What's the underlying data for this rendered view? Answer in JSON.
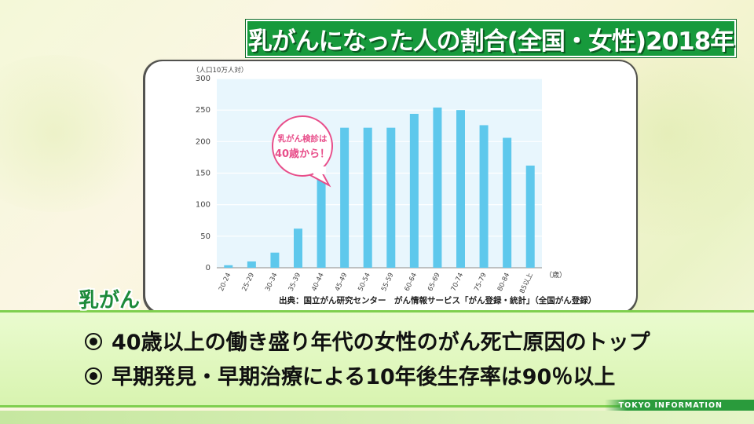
{
  "title": "乳がんになった人の割合(全国・女性)2018年",
  "chart_data": {
    "type": "bar",
    "unit_label": "（人口10万人対）",
    "x_unit": "（歳）",
    "categories": [
      "20-24",
      "25-29",
      "30-34",
      "35-39",
      "40-44",
      "45-49",
      "50-54",
      "55-59",
      "60-64",
      "65-69",
      "70-74",
      "75-79",
      "80-84",
      "85以上"
    ],
    "values": [
      4,
      10,
      24,
      62,
      144,
      222,
      222,
      222,
      244,
      254,
      250,
      226,
      206,
      162
    ],
    "ylim": [
      0,
      300
    ],
    "yticks": [
      0,
      50,
      100,
      150,
      200,
      250,
      300
    ],
    "grid": true,
    "bar_color": "#5ec8ec",
    "plot_bg": "#e8f6fd",
    "callout": [
      "乳がん検診は",
      "40歳から！"
    ],
    "callout_color": "#e84e8a",
    "source": "出典：国立がん研究センター　がん情報サービス「がん登録・統計」（全国がん登録）"
  },
  "section_label": "乳がん",
  "bullets": [
    "40歳以上の働き盛り年代の女性のがん死亡原因のトップ",
    "早期発見・早期治療による10年後生存率は90％以上"
  ],
  "ticker": "TOKYO INFORMATION",
  "colors": {
    "title_bg": "#179a3c",
    "accent_green": "#1c8a3a"
  }
}
